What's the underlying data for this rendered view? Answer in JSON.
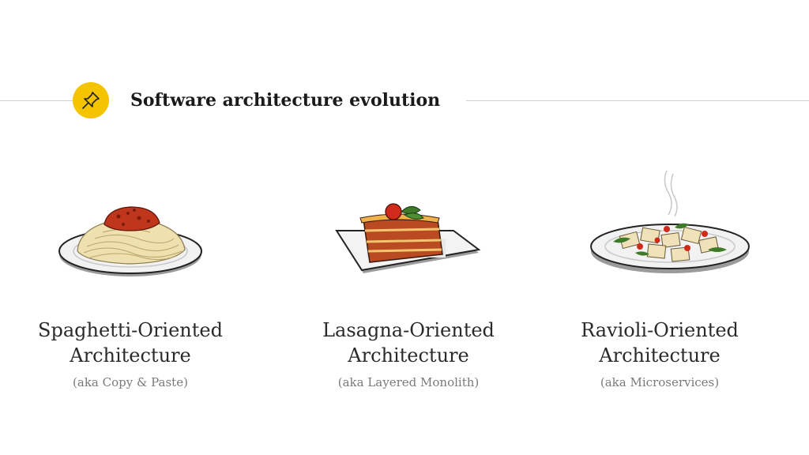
{
  "slide": {
    "title": "Software architecture evolution",
    "badge_icon": "pushpin-icon",
    "accent_color": "#f5c400"
  },
  "items": [
    {
      "illustration": "spaghetti-plate",
      "name_line1": "Spaghetti-Oriented",
      "name_line2": "Architecture",
      "aka": "(aka Copy & Paste)"
    },
    {
      "illustration": "lasagna-plate",
      "name_line1": "Lasagna-Oriented",
      "name_line2": "Architecture",
      "aka": "(aka Layered Monolith)"
    },
    {
      "illustration": "ravioli-plate",
      "name_line1": "Ravioli-Oriented",
      "name_line2": "Architecture",
      "aka": "(aka Microservices)"
    }
  ]
}
